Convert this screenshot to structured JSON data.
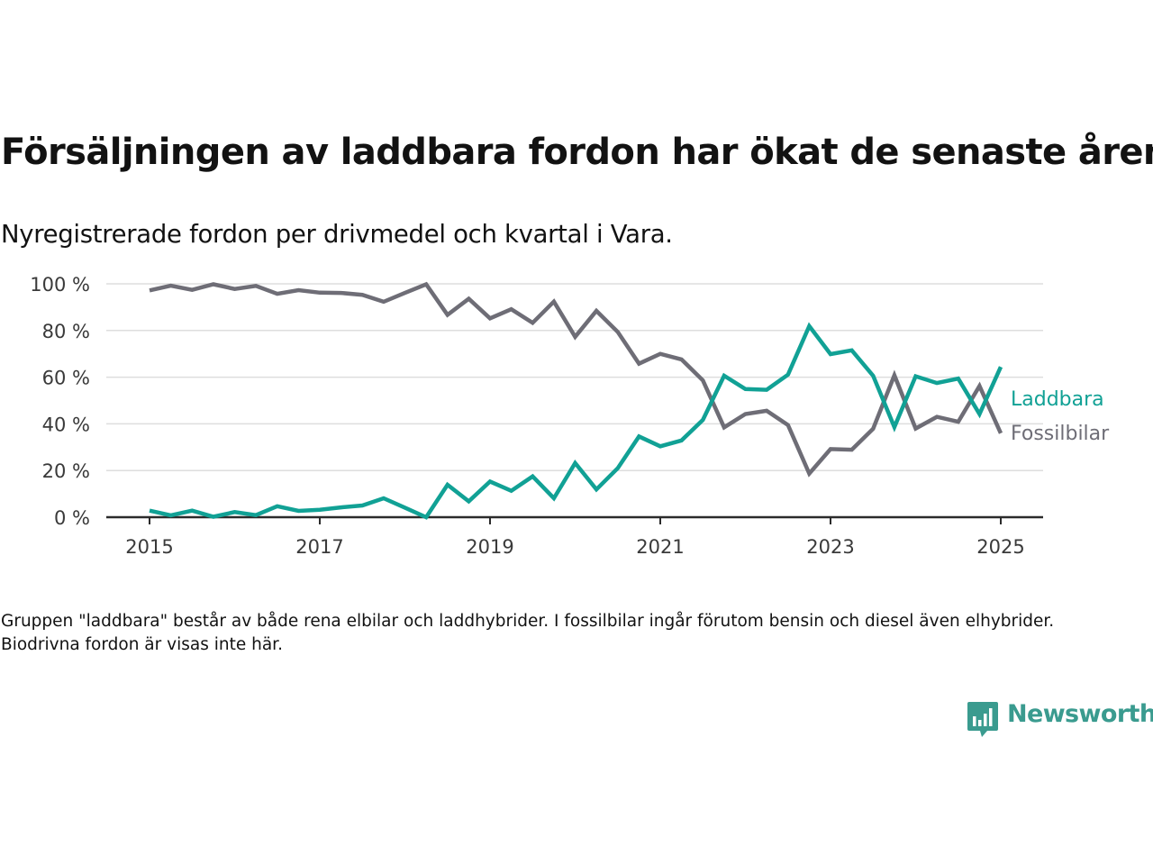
{
  "title": "Försäljningen av laddbara fordon har ökat de senaste åren",
  "subtitle": "Nyregistrerade fordon per drivmedel och kvartal i Vara.",
  "footnote": "Gruppen \"laddbara\" består av både rena elbilar och laddhybrider. I fossilbilar ingår förutom bensin och diesel även elhybrider. Biodrivna fordon är visas inte här.",
  "logo": {
    "name": "Newsworthy",
    "icon": "chart-bubble-icon",
    "color": "#3a9b8f"
  },
  "colors": {
    "laddbara": "#11a195",
    "fossilbilar": "#6e6d76",
    "grid": "#dedede",
    "axis": "#2b2b2b",
    "text": "#3a3a3a"
  },
  "chart_data": {
    "type": "line",
    "x_unit": "quarter start (year)",
    "x": [
      2015,
      2015.25,
      2015.5,
      2015.75,
      2016,
      2016.25,
      2016.5,
      2016.75,
      2017,
      2017.25,
      2017.5,
      2017.75,
      2018,
      2018.25,
      2018.5,
      2018.75,
      2019,
      2019.25,
      2019.5,
      2019.75,
      2020,
      2020.25,
      2020.5,
      2020.75,
      2021,
      2021.25,
      2021.5,
      2021.75,
      2022,
      2022.25,
      2022.5,
      2022.75,
      2023,
      2023.25,
      2023.5,
      2023.75,
      2024,
      2024.25,
      2024.5,
      2024.75,
      2025
    ],
    "series": [
      {
        "name": "Laddbara",
        "color": "#11a195",
        "values": [
          2.8,
          0.8,
          2.8,
          0.2,
          2.2,
          0.9,
          4.7,
          2.7,
          3.2,
          4.2,
          5.0,
          8.1,
          4.1,
          0.0,
          13.9,
          6.8,
          15.3,
          11.3,
          17.5,
          8.1,
          23.2,
          11.9,
          21.0,
          34.6,
          30.4,
          32.9,
          41.7,
          60.6,
          54.9,
          54.6,
          61.1,
          81.9,
          69.9,
          71.5,
          60.6,
          38.6,
          60.4,
          57.5,
          59.4,
          44.2,
          64.4
        ]
      },
      {
        "name": "Fossilbilar",
        "color": "#6e6d76",
        "values": [
          97.2,
          99.2,
          97.4,
          99.8,
          97.8,
          99.1,
          95.7,
          97.3,
          96.2,
          96.1,
          95.3,
          92.3,
          96.1,
          99.8,
          86.7,
          93.6,
          85.2,
          89.1,
          83.3,
          92.4,
          77.3,
          88.4,
          79.4,
          65.8,
          70.0,
          67.6,
          58.6,
          38.5,
          44.2,
          45.6,
          39.5,
          18.7,
          29.2,
          28.9,
          37.9,
          60.8,
          38.0,
          43.0,
          40.9,
          56.2,
          36.0
        ]
      }
    ],
    "yticks": [
      "0 %",
      "20 %",
      "40 %",
      "60 %",
      "80 %",
      "100 %"
    ],
    "xticks": [
      "2015",
      "2017",
      "2019",
      "2021",
      "2023",
      "2025"
    ],
    "ylim": [
      0,
      100
    ],
    "xlim": [
      2014.5,
      2025.5
    ],
    "grid": true,
    "legend": "labels at line ends (right)"
  }
}
